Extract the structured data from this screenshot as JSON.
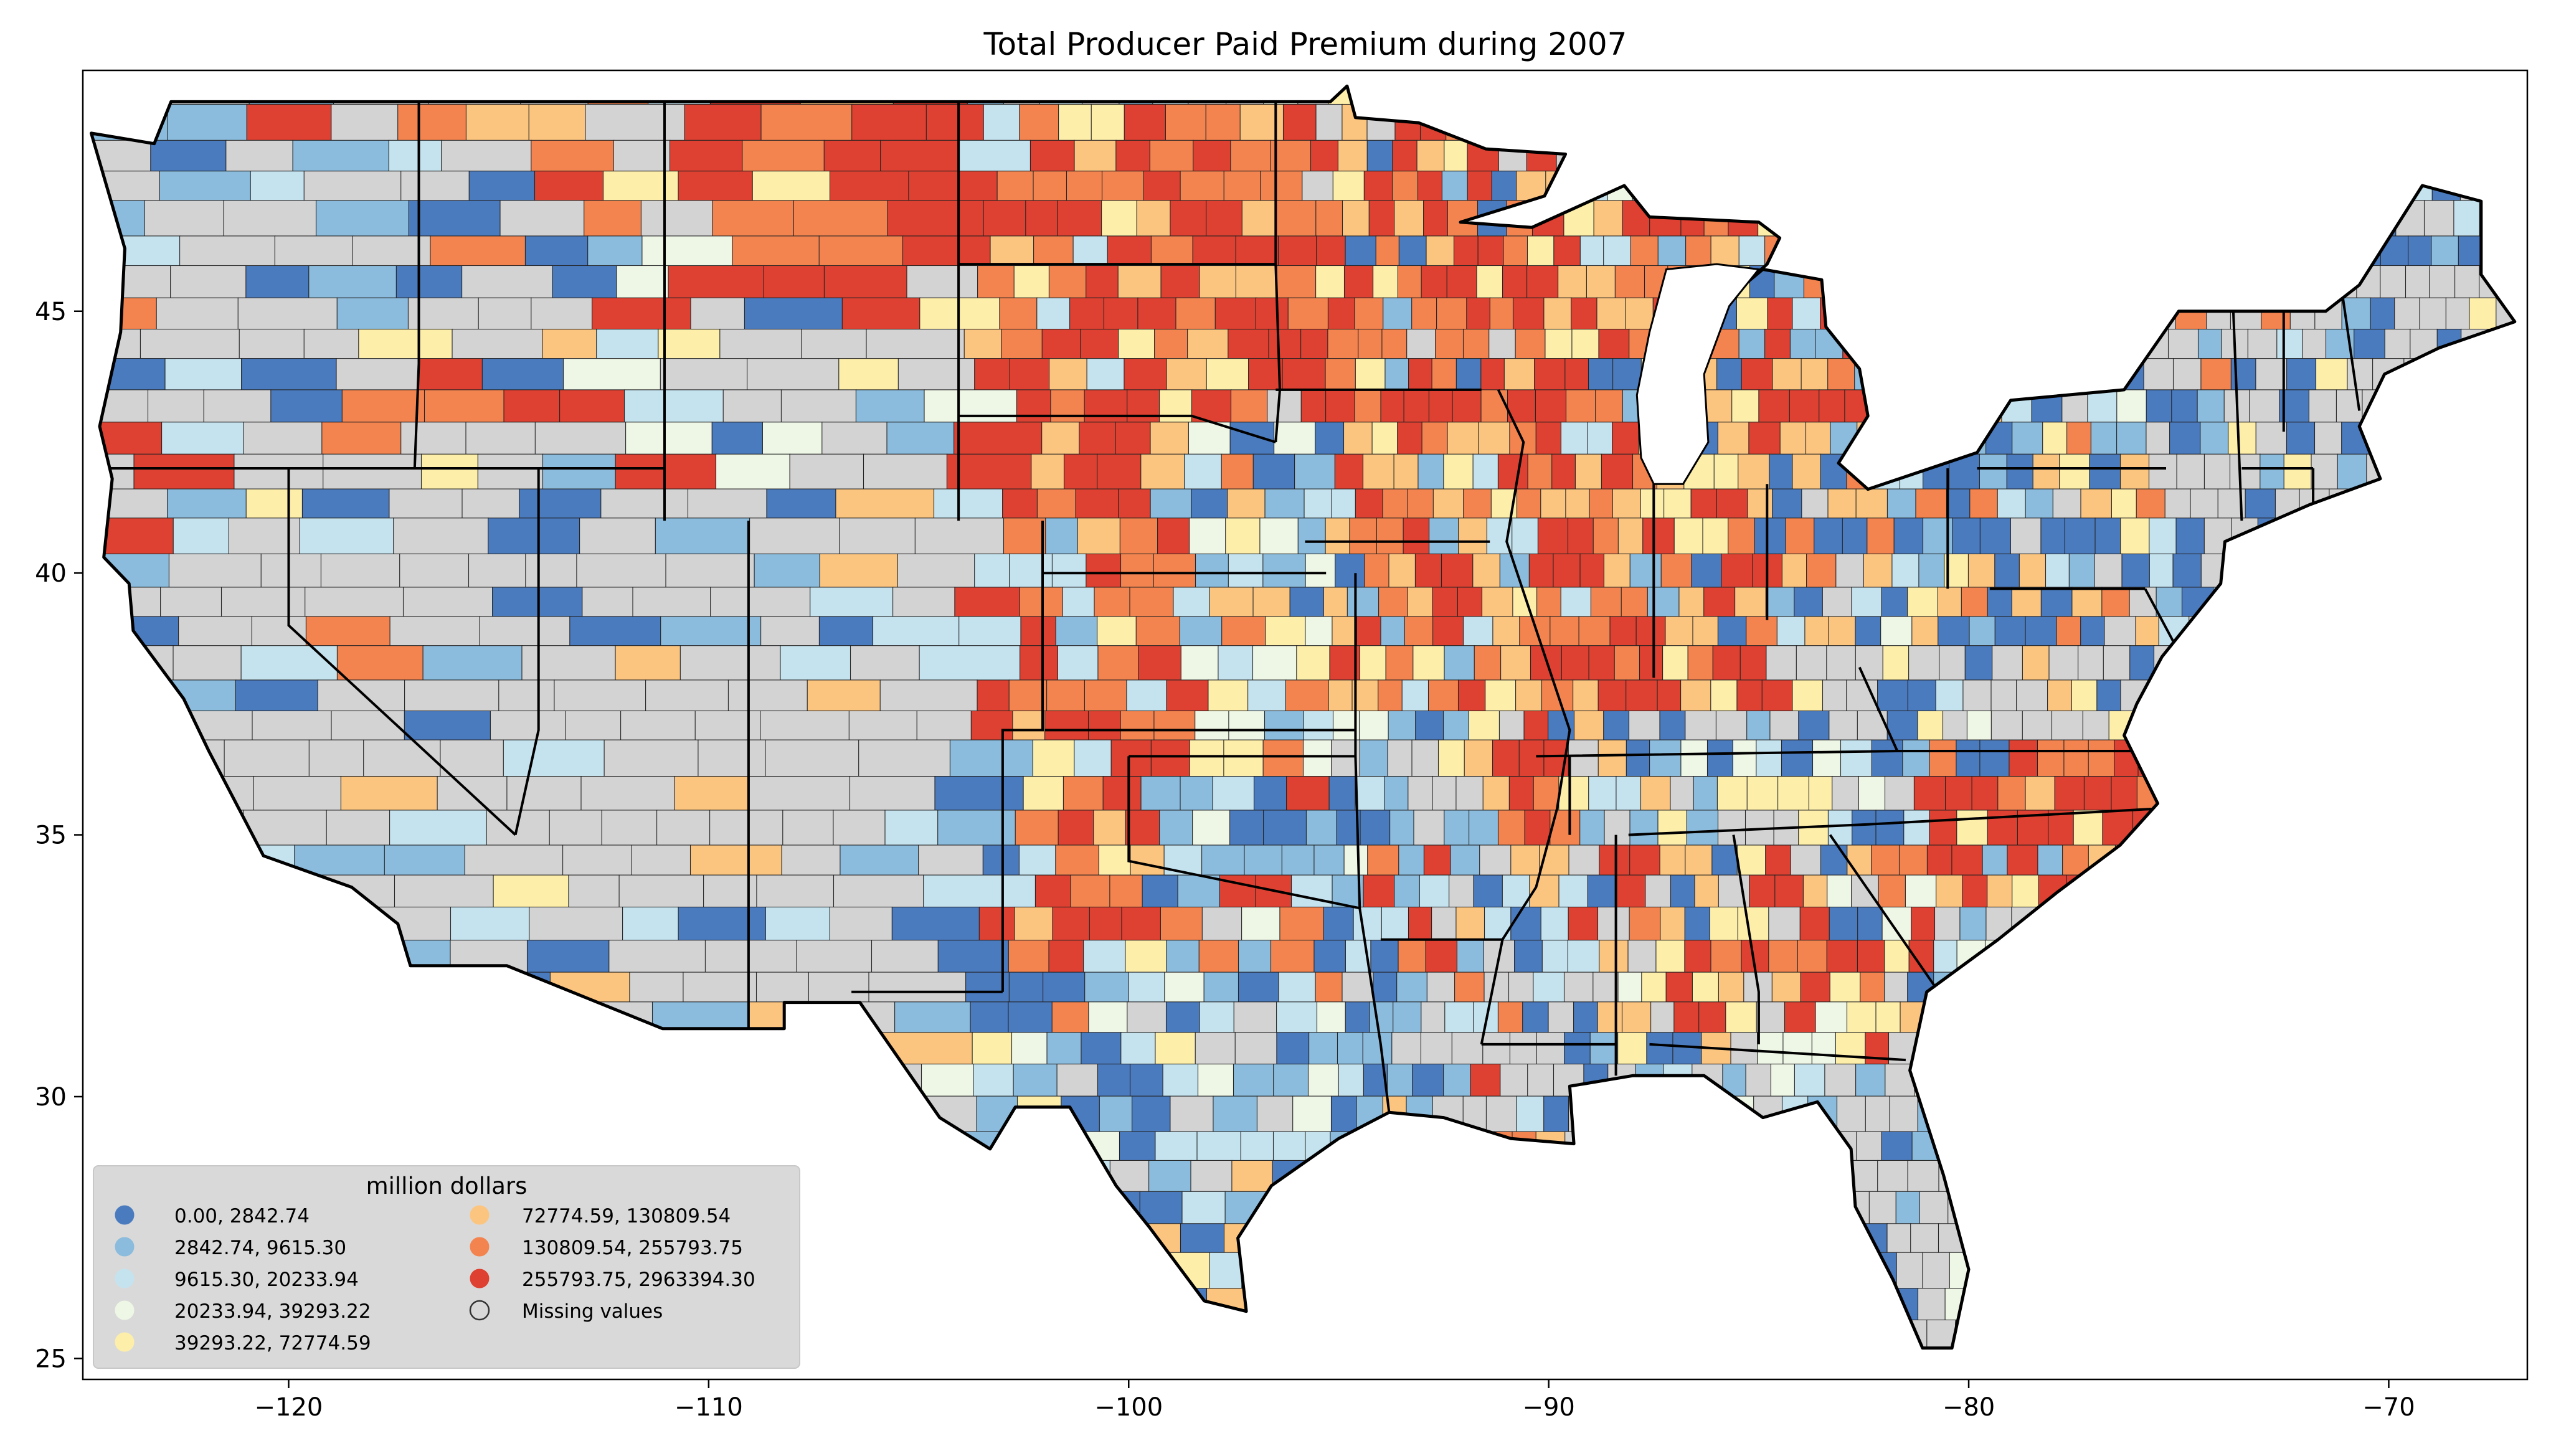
{
  "title": "Total Producer Paid Premium during 2007",
  "axes": {
    "x_ticks": [
      {
        "value": -120,
        "label": "−120"
      },
      {
        "value": -110,
        "label": "−110"
      },
      {
        "value": -100,
        "label": "−100"
      },
      {
        "value": -90,
        "label": "−90"
      },
      {
        "value": -80,
        "label": "−80"
      },
      {
        "value": -70,
        "label": "−70"
      }
    ],
    "y_ticks": [
      {
        "value": 45,
        "label": "45"
      },
      {
        "value": 40,
        "label": "40"
      },
      {
        "value": 35,
        "label": "35"
      },
      {
        "value": 30,
        "label": "30"
      },
      {
        "value": 25,
        "label": "25"
      }
    ],
    "xlim": [
      -124.9,
      -66.7
    ],
    "ylim": [
      24.6,
      49.6
    ]
  },
  "legend": {
    "title": "million dollars",
    "placement": "lower-left",
    "entries": [
      {
        "label": "0.00,    2842.74",
        "color": "#4a7bbf"
      },
      {
        "label": "2842.74,    9615.30",
        "color": "#8bbcdd"
      },
      {
        "label": "9615.30,   20233.94",
        "color": "#c5e3ef"
      },
      {
        "label": "20233.94,   39293.22",
        "color": "#eef7e6"
      },
      {
        "label": "39293.22,   72774.59",
        "color": "#fdeeaa"
      },
      {
        "label": "72774.59,  130809.54",
        "color": "#fcc57f"
      },
      {
        "label": "130809.54,  255793.75",
        "color": "#f4844f"
      },
      {
        "label": "255793.75, 2963394.30",
        "color": "#de4131"
      },
      {
        "label": "Missing values",
        "color": "#d3d3d3"
      }
    ]
  },
  "colors": {
    "missing": "#d3d3d3",
    "border": "#000000",
    "legend_bg": "#d9d9d9"
  },
  "chart_data": {
    "type": "choropleth",
    "region": "contiguous United States (county level)",
    "variable": "Total Producer Paid Premium during 2007",
    "unit": "million dollars",
    "bins": [
      [
        0.0,
        2842.74
      ],
      [
        2842.74,
        9615.3
      ],
      [
        9615.3,
        20233.94
      ],
      [
        20233.94,
        39293.22
      ],
      [
        39293.22,
        72774.59
      ],
      [
        72774.59,
        130809.54
      ],
      [
        130809.54,
        255793.75
      ],
      [
        255793.75,
        2963394.3
      ]
    ],
    "regional_pattern": [
      {
        "area": "Northern Great Plains (MT, ND, SD, MN)",
        "lon": -102,
        "lat": 47.5,
        "bin": 7
      },
      {
        "area": "Western Kansas / eastern Colorado",
        "lon": -101,
        "lat": 38.5,
        "bin": 7
      },
      {
        "area": "Iowa / Illinois corn belt",
        "lon": -91,
        "lat": 41.5,
        "bin": 6
      },
      {
        "area": "Mississippi delta",
        "lon": -90.5,
        "lat": 34.5,
        "bin": 7
      },
      {
        "area": "Eastern North Carolina",
        "lon": -78,
        "lat": 35.5,
        "bin": 7
      },
      {
        "area": "Southwest Georgia / Alabama",
        "lon": -84.5,
        "lat": 31.5,
        "bin": 7
      },
      {
        "area": "Central Valley California",
        "lon": -120,
        "lat": 37,
        "bin": 6
      },
      {
        "area": "Texas Panhandle",
        "lon": -101.5,
        "lat": 34.5,
        "bin": 6
      },
      {
        "area": "Nevada / Utah Great Basin",
        "lon": -115.5,
        "lat": 39.5,
        "bin": -1
      },
      {
        "area": "Arizona / New Mexico",
        "lon": -108,
        "lat": 34.5,
        "bin": -1
      },
      {
        "area": "Appalachia",
        "lon": -81.5,
        "lat": 37.5,
        "bin": -1
      },
      {
        "area": "Northeast (NY, VT, NH, ME)",
        "lon": -72,
        "lat": 44,
        "bin": 0
      },
      {
        "area": "Central Texas",
        "lon": -98.5,
        "lat": 31,
        "bin": 1
      },
      {
        "area": "Florida peninsula",
        "lon": -81.8,
        "lat": 28,
        "bin": -1
      }
    ]
  }
}
